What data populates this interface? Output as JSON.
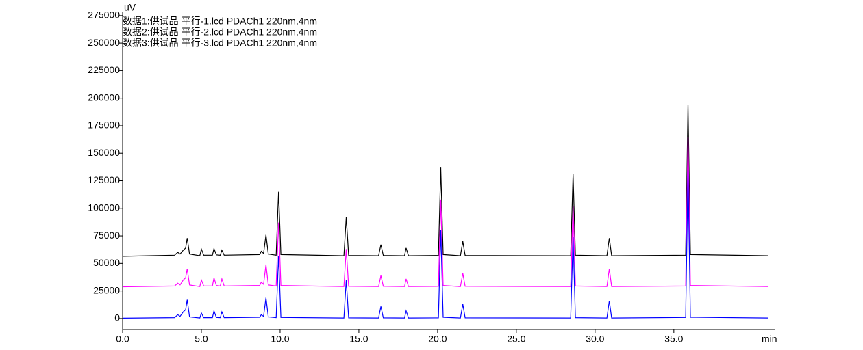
{
  "chart_data": {
    "type": "line",
    "y_label": "uV",
    "x_label": "min",
    "x": [
      0,
      3.3,
      3.5,
      3.65,
      3.85,
      4.0,
      4.1,
      4.25,
      4.9,
      5.0,
      5.15,
      5.7,
      5.8,
      5.95,
      6.2,
      6.3,
      6.45,
      8.7,
      8.8,
      8.95,
      9.1,
      9.25,
      9.75,
      9.9,
      10.05,
      14.05,
      14.2,
      14.35,
      16.25,
      16.4,
      16.55,
      17.9,
      18.0,
      18.15,
      20.05,
      20.2,
      20.35,
      21.45,
      21.6,
      21.75,
      28.45,
      28.6,
      28.75,
      30.75,
      30.9,
      31.05,
      35.75,
      35.9,
      36.05,
      41.0
    ],
    "series": [
      {
        "name": "数据1:供试品 平行-1.lcd PDACh1 220nm,4nm",
        "color": "#000000",
        "values": [
          56500,
          57500,
          60000,
          58500,
          62000,
          64000,
          73000,
          58500,
          57000,
          63000,
          57500,
          57500,
          63500,
          57800,
          57500,
          62000,
          57500,
          58000,
          61000,
          59000,
          76000,
          58500,
          57500,
          115000,
          58000,
          57000,
          92000,
          57200,
          57000,
          67000,
          57200,
          57000,
          64000,
          57000,
          57200,
          137000,
          58000,
          57000,
          70000,
          57200,
          57000,
          131000,
          57500,
          57000,
          73000,
          57000,
          57500,
          194000,
          58000,
          57000
        ]
      },
      {
        "name": "数据2:供试品 平行-2.lcd PDACh1 220nm,4nm",
        "color": "#ff00ff",
        "values": [
          28800,
          29500,
          32000,
          30500,
          35000,
          37000,
          45000,
          30500,
          29000,
          35000,
          29500,
          29500,
          37000,
          30000,
          29500,
          36000,
          29500,
          30000,
          33000,
          31000,
          49000,
          30500,
          29500,
          87000,
          30000,
          29000,
          63000,
          29200,
          29000,
          39000,
          29200,
          29000,
          36000,
          29000,
          29200,
          108000,
          30000,
          29000,
          41000,
          29200,
          29000,
          102000,
          29500,
          29000,
          45000,
          29000,
          29500,
          165000,
          30000,
          29000
        ]
      },
      {
        "name": "数据3:供试品 平行-3.lcd PDACh1 220nm,4nm",
        "color": "#0000ff",
        "values": [
          300,
          800,
          3500,
          2000,
          6000,
          8000,
          17000,
          1500,
          500,
          5000,
          800,
          800,
          7000,
          1000,
          800,
          6000,
          800,
          1200,
          3500,
          2000,
          19000,
          1500,
          800,
          57000,
          1000,
          500,
          35000,
          600,
          500,
          11000,
          600,
          500,
          7000,
          500,
          600,
          80000,
          1200,
          500,
          13000,
          600,
          500,
          74000,
          800,
          500,
          16000,
          500,
          1000,
          135000,
          1200,
          500
        ]
      }
    ],
    "xlim": [
      0,
      41.4
    ],
    "ylim": [
      -10000,
      278000
    ],
    "xticks": [
      {
        "value": 0,
        "label": "0.0"
      },
      {
        "value": 5,
        "label": "5.0"
      },
      {
        "value": 10,
        "label": "10.0"
      },
      {
        "value": 15,
        "label": "15.0"
      },
      {
        "value": 20,
        "label": "20.0"
      },
      {
        "value": 25,
        "label": "25.0"
      },
      {
        "value": 30,
        "label": "30.0"
      },
      {
        "value": 35,
        "label": "35.0"
      }
    ],
    "yticks": [
      0,
      25000,
      50000,
      75000,
      100000,
      125000,
      150000,
      175000,
      200000,
      225000,
      250000,
      275000
    ]
  }
}
